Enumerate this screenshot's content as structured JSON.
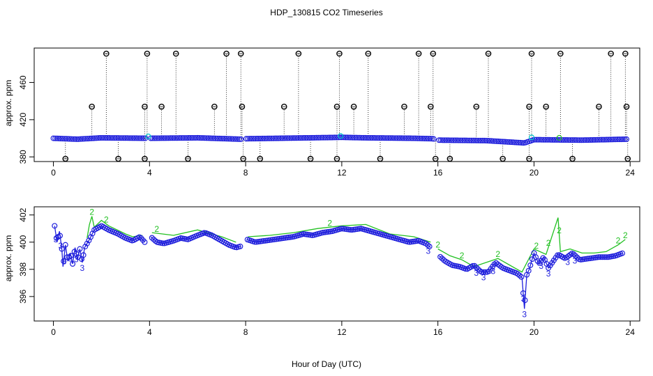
{
  "chart_data": [
    {
      "type": "scatter",
      "title": "HDP_130815  CO2 Timeseries",
      "ylabel": "approx. ppm",
      "xlabel": "",
      "xlim": [
        -0.8,
        24.4
      ],
      "ylim": [
        375,
        497
      ],
      "xticks": [
        0,
        4,
        8,
        12,
        16,
        20,
        24
      ],
      "yticks": [
        380,
        420,
        460
      ],
      "colors": {
        "outlier": "#000000",
        "main": "#1f1fdc",
        "secondary": "#00c8c8",
        "accent": "#22c022"
      },
      "baseline": [
        [
          0,
          400
        ],
        [
          1,
          399
        ],
        [
          2,
          400.5
        ],
        [
          4,
          400
        ],
        [
          6,
          400.5
        ],
        [
          7.8,
          399
        ],
        [
          8,
          399.5
        ],
        [
          12,
          401
        ],
        [
          13,
          400.5
        ],
        [
          15,
          400
        ],
        [
          15.8,
          399.5
        ],
        [
          16,
          398
        ],
        [
          18,
          397.5
        ],
        [
          19.6,
          395
        ],
        [
          20,
          398.5
        ],
        [
          22,
          398
        ],
        [
          23.8,
          399
        ]
      ],
      "high_outliers": [
        2.2,
        3.9,
        5.1,
        7.2,
        7.8,
        10.2,
        11.9,
        13.1,
        15.2,
        15.8,
        18.1,
        19.9,
        21.1,
        23.2,
        23.8
      ],
      "mid_outliers": [
        1.6,
        3.8,
        4.5,
        6.7,
        7.85,
        9.6,
        11.8,
        12.5,
        14.6,
        15.7,
        17.6,
        19.8,
        20.5,
        22.7,
        23.85
      ],
      "low_outliers": [
        0.5,
        2.7,
        3.8,
        5.6,
        7.9,
        8.6,
        10.7,
        11.8,
        13.6,
        15.9,
        16.5,
        18.7,
        19.8,
        21.6,
        23.9
      ],
      "spike_values": {
        "high": 491,
        "mid": 434,
        "low": 378
      }
    },
    {
      "type": "line",
      "title": "",
      "xlabel": "Hour of Day (UTC)",
      "ylabel": "approx. ppm",
      "xlim": [
        -0.8,
        24.4
      ],
      "ylim": [
        394.2,
        402.6
      ],
      "xticks": [
        0,
        4,
        8,
        12,
        16,
        20,
        24
      ],
      "yticks": [
        396,
        398,
        400,
        402
      ],
      "point_label": "3",
      "secondary_label": "2",
      "series": [
        {
          "name": "3",
          "color": "#1f1fdc",
          "points": [
            [
              0.05,
              401.2
            ],
            [
              0.15,
              400
            ],
            [
              0.25,
              400.8
            ],
            [
              0.35,
              399.5
            ],
            [
              0.4,
              398.2
            ],
            [
              0.5,
              399.8
            ],
            [
              0.6,
              398.6
            ],
            [
              0.7,
              399.2
            ],
            [
              0.8,
              398.4
            ],
            [
              0.9,
              399.6
            ],
            [
              1,
              398.7
            ],
            [
              1.1,
              399.5
            ],
            [
              1.2,
              398.5
            ],
            [
              1.3,
              399.6
            ],
            [
              1.5,
              400.2
            ],
            [
              1.7,
              400.9
            ],
            [
              2,
              401.2
            ],
            [
              2.3,
              400.9
            ],
            [
              2.7,
              400.6
            ],
            [
              3,
              400.3
            ],
            [
              3.3,
              400.1
            ],
            [
              3.6,
              400.4
            ],
            [
              3.8,
              400.0
            ],
            [
              3.9,
              null
            ],
            [
              4.05,
              400.4
            ],
            [
              4.3,
              400.0
            ],
            [
              4.6,
              399.9
            ],
            [
              5,
              400.1
            ],
            [
              5.3,
              400.3
            ],
            [
              5.6,
              400.2
            ],
            [
              6,
              400.5
            ],
            [
              6.3,
              400.7
            ],
            [
              6.6,
              400.5
            ],
            [
              7,
              400.1
            ],
            [
              7.3,
              399.8
            ],
            [
              7.6,
              399.6
            ],
            [
              7.8,
              399.7
            ],
            [
              7.9,
              null
            ],
            [
              8.05,
              400.2
            ],
            [
              8.4,
              400.0
            ],
            [
              8.8,
              400.1
            ],
            [
              9.2,
              400.2
            ],
            [
              9.6,
              400.3
            ],
            [
              10,
              400.4
            ],
            [
              10.4,
              400.6
            ],
            [
              10.8,
              400.5
            ],
            [
              11.2,
              400.7
            ],
            [
              11.6,
              400.8
            ],
            [
              12,
              401.0
            ],
            [
              12.4,
              400.9
            ],
            [
              12.8,
              401.0
            ],
            [
              13.2,
              400.8
            ],
            [
              13.6,
              400.6
            ],
            [
              14,
              400.4
            ],
            [
              14.4,
              400.2
            ],
            [
              14.8,
              400.0
            ],
            [
              15.2,
              400.1
            ],
            [
              15.5,
              399.9
            ],
            [
              15.7,
              399.6
            ],
            [
              15.85,
              null
            ],
            [
              16.05,
              399.0
            ],
            [
              16.3,
              398.6
            ],
            [
              16.6,
              398.3
            ],
            [
              16.9,
              398.2
            ],
            [
              17.2,
              398.0
            ],
            [
              17.5,
              398.3
            ],
            [
              17.8,
              397.8
            ],
            [
              18.1,
              397.8
            ],
            [
              18.4,
              398.5
            ],
            [
              18.7,
              398.1
            ],
            [
              19,
              397.9
            ],
            [
              19.3,
              397.7
            ],
            [
              19.5,
              397.4
            ],
            [
              19.6,
              395.1
            ],
            [
              19.7,
              397.6
            ],
            [
              19.8,
              398.0
            ],
            [
              20,
              399.2
            ],
            [
              20.2,
              398.4
            ],
            [
              20.4,
              398.9
            ],
            [
              20.6,
              398.1
            ],
            [
              20.8,
              398.6
            ],
            [
              21,
              399.1
            ],
            [
              21.3,
              398.8
            ],
            [
              21.6,
              399.2
            ],
            [
              21.9,
              398.7
            ],
            [
              22.3,
              398.8
            ],
            [
              22.7,
              398.9
            ],
            [
              23.1,
              398.9
            ],
            [
              23.4,
              399.0
            ],
            [
              23.7,
              399.2
            ]
          ]
        },
        {
          "name": "2",
          "color": "#22c022",
          "points": [
            [
              1.4,
              400.3
            ],
            [
              1.5,
              401.3
            ],
            [
              1.6,
              401.9
            ],
            [
              1.7,
              401.1
            ],
            [
              2,
              401.6
            ],
            [
              2.3,
              401.2
            ],
            [
              3,
              400.6
            ],
            [
              3.3,
              400.4
            ],
            [
              3.7,
              400.5
            ],
            [
              3.8,
              null
            ],
            [
              4.1,
              400.7
            ],
            [
              5,
              400.5
            ],
            [
              6,
              400.9
            ],
            [
              7,
              400.4
            ],
            [
              7.6,
              400.0
            ],
            [
              7.8,
              null
            ],
            [
              8.1,
              400.4
            ],
            [
              9,
              400.5
            ],
            [
              10,
              400.7
            ],
            [
              11,
              401.0
            ],
            [
              12,
              401.2
            ],
            [
              13,
              401.3
            ],
            [
              14,
              400.6
            ],
            [
              15,
              400.4
            ],
            [
              15.7,
              400.0
            ],
            [
              15.85,
              null
            ],
            [
              16,
              399.5
            ],
            [
              16.5,
              399.0
            ],
            [
              17,
              398.7
            ],
            [
              17.5,
              398.2
            ],
            [
              18,
              398.5
            ],
            [
              18.5,
              398.8
            ],
            [
              19,
              398.3
            ],
            [
              19.5,
              397.8
            ],
            [
              20,
              399.5
            ],
            [
              20.5,
              399.1
            ],
            [
              21,
              401.8
            ],
            [
              21.1,
              399.3
            ],
            [
              21.5,
              399.5
            ],
            [
              22,
              399.2
            ],
            [
              22.5,
              399.2
            ],
            [
              23,
              399.3
            ],
            [
              23.5,
              399.8
            ],
            [
              23.8,
              400.2
            ]
          ]
        }
      ]
    }
  ]
}
